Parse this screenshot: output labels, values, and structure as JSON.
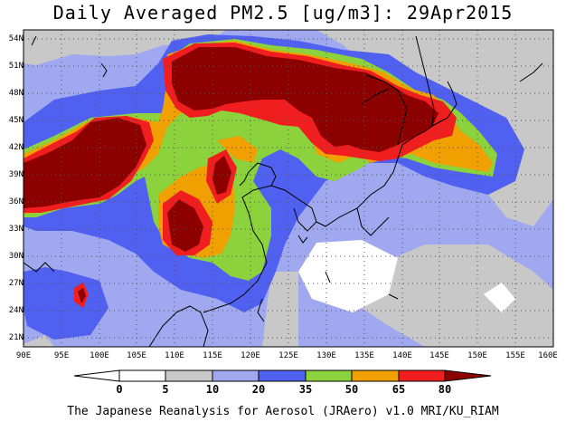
{
  "title": "Daily Averaged PM2.5 [ug/m3]: 29Apr2015",
  "footer": "The Japanese Reanalysis for Aerosol (JRAero) v1.0 MRI/KU_RIAM",
  "map": {
    "lon_range": [
      90,
      160
    ],
    "lat_range": [
      20,
      55
    ],
    "lat_ticks": [
      "54N",
      "51N",
      "48N",
      "45N",
      "42N",
      "39N",
      "36N",
      "33N",
      "30N",
      "27N",
      "24N",
      "21N"
    ],
    "lon_ticks": [
      "90E",
      "95E",
      "100E",
      "105E",
      "110E",
      "115E",
      "120E",
      "125E",
      "130E",
      "135E",
      "140E",
      "145E",
      "150E",
      "155E",
      "160E"
    ]
  },
  "colorbar": {
    "labels": [
      "0",
      "5",
      "10",
      "20",
      "35",
      "50",
      "65",
      "80"
    ],
    "colors": [
      "#ffffff",
      "#c8c8c8",
      "#a0a8f0",
      "#5060f0",
      "#8cd23c",
      "#f0a000",
      "#f01e1e",
      "#8c0000"
    ]
  }
}
